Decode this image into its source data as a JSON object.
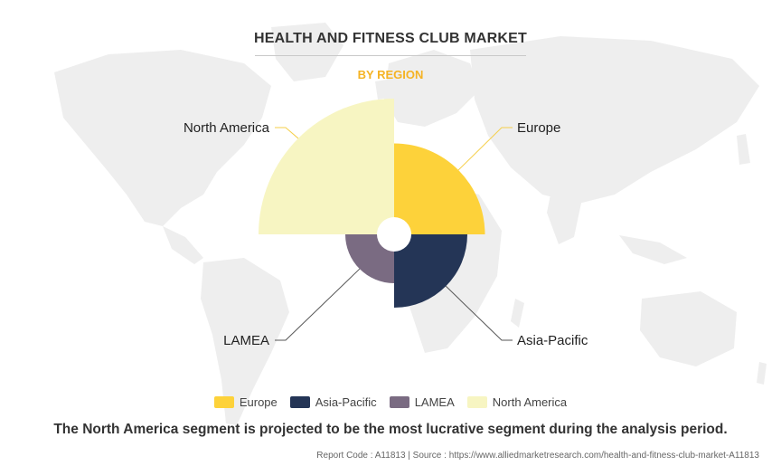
{
  "title": "HEALTH AND FITNESS CLUB MARKET",
  "subtitle": "BY REGION",
  "caption": "The North America segment is projected to be the most lucrative segment during the analysis period.",
  "footer": {
    "report_code": "Report Code : A11813",
    "separator": "|",
    "source": "Source : https://www.alliedmarketresearch.com/health-and-fitness-club-market-A11813"
  },
  "colors": {
    "europe": "#fdd23a",
    "asia_pacific": "#243556",
    "lamea": "#7a6b82",
    "north_america": "#f7f5c2",
    "title": "#333333",
    "subtitle": "#f5b324"
  },
  "chart_data": {
    "type": "pie",
    "variant": "polar-area (nightingale rose), four equal-angle quadrants",
    "title": "HEALTH AND FITNESS CLUB MARKET",
    "subtitle": "BY REGION",
    "legend_position": "bottom",
    "series": [
      {
        "name": "Europe",
        "relative_radius": 0.67,
        "quadrant": "top-right",
        "color": "#fdd23a"
      },
      {
        "name": "Asia-Pacific",
        "relative_radius": 0.54,
        "quadrant": "bottom-right",
        "color": "#243556"
      },
      {
        "name": "LAMEA",
        "relative_radius": 0.36,
        "quadrant": "bottom-left",
        "color": "#7a6b82"
      },
      {
        "name": "North America",
        "relative_radius": 1.0,
        "quadrant": "top-left",
        "color": "#f7f5c2"
      }
    ]
  }
}
